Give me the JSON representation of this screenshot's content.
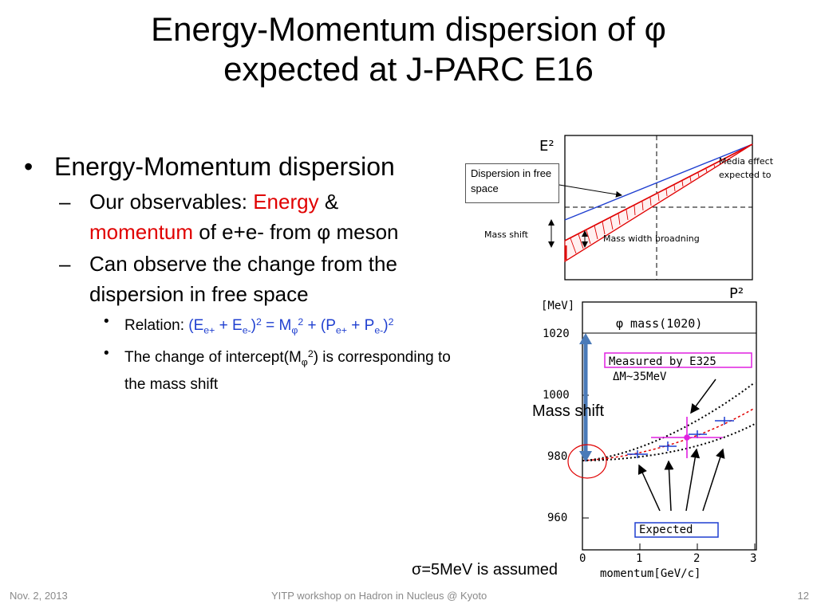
{
  "title": {
    "line1": "Energy-Momentum dispersion of φ",
    "line2": "expected at J-PARC E16"
  },
  "bullets": {
    "b1": "Energy-Momentum dispersion",
    "b1a_prefix": "Our observables: ",
    "b1a_energy": "Energy",
    "b1a_amp": " &",
    "b1a_momentum": "momentum",
    "b1a_suffix": " of e+e- from φ meson",
    "b1b": "Can observe the change from the dispersion in free space",
    "b2_label": "Relation: ",
    "b2_p1": "(E",
    "b2_s1": "e+",
    "b2_p2": " + E",
    "b2_s2": "e-",
    "b2_p3": ")",
    "b2_e1": "2",
    "b2_p4": " = M",
    "b2_s3": "φ",
    "b2_e2": "2",
    "b2_p5": " + (P",
    "b2_s4": "e+",
    "b2_p6": " + P",
    "b2_s5": "e-",
    "b2_p7": ")",
    "b2_e3": "2",
    "b3_p1": "The change of intercept(M",
    "b3_s1": "φ",
    "b3_e1": "2",
    "b3_p2": ") is corresponding to the mass shift"
  },
  "dispersion_figure": {
    "y_axis": "E²",
    "x_axis": "P²",
    "callout": "Dispersion in free space",
    "media_effect_1": "Media effect",
    "media_effect_2": "expected to",
    "mass_shift": "Mass  shift",
    "broadening": "Mass width broadning"
  },
  "mass_figure": {
    "unit": "[MeV]",
    "header": "φ mass(1020)",
    "y_ticks": [
      "1020",
      "1000",
      "980",
      "960"
    ],
    "x_ticks": [
      "0",
      "1",
      "2",
      "3"
    ],
    "xlabel": "momentum[GeV/c]",
    "measured_1": "Measured by E325",
    "measured_2": "ΔM~35MeV",
    "expected": "Expected",
    "mass_shift_label": "Mass shift",
    "sigma_note": "σ=5MeV is assumed"
  },
  "colors": {
    "blue_text": "#1f3fd0",
    "red_text": "#e00000",
    "magenta": "#e020e0"
  },
  "footer": {
    "date": "Nov. 2, 2013",
    "center": "YITP workshop on  Hadron in Nucleus @ Kyoto",
    "page": "12"
  }
}
